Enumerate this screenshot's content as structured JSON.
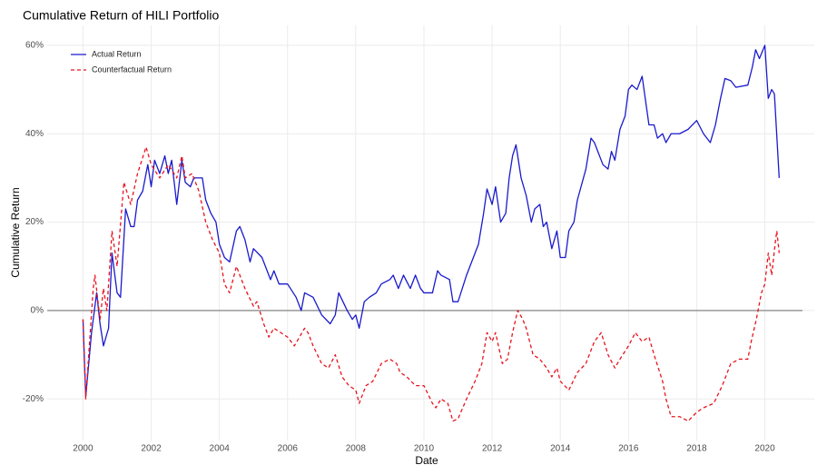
{
  "chart_data": {
    "type": "line",
    "title": "Cumulative Return of HILI Portfolio",
    "xlabel": "Date",
    "ylabel": "Cumulative Return",
    "xlim": [
      1998.95,
      2021.45
    ],
    "xticks": [
      2000,
      2002,
      2004,
      2006,
      2008,
      2010,
      2012,
      2014,
      2016,
      2018,
      2020
    ],
    "ylim": [
      -29.4,
      64.5
    ],
    "yticks": [
      {
        "value": -20,
        "label": "-20%"
      },
      {
        "value": 0,
        "label": "0%"
      },
      {
        "value": 20,
        "label": "20%"
      },
      {
        "value": 40,
        "label": "40%"
      },
      {
        "value": 60,
        "label": "60%"
      }
    ],
    "grid": true,
    "hline": 0,
    "legend": "top-left",
    "series": [
      {
        "name": "Actual Return",
        "color": "#1a1acd",
        "dashed": false,
        "x": [
          2000.0,
          2000.08,
          2000.25,
          2000.4,
          2000.5,
          2000.6,
          2000.75,
          2000.85,
          2001.0,
          2001.1,
          2001.25,
          2001.4,
          2001.5,
          2001.6,
          2001.75,
          2001.9,
          2002.0,
          2002.1,
          2002.25,
          2002.4,
          2002.5,
          2002.6,
          2002.75,
          2002.9,
          2003.0,
          2003.15,
          2003.25,
          2003.5,
          2003.6,
          2003.75,
          2003.9,
          2004.0,
          2004.15,
          2004.3,
          2004.5,
          2004.6,
          2004.75,
          2004.9,
          2005.0,
          2005.25,
          2005.5,
          2005.6,
          2005.75,
          2006.0,
          2006.25,
          2006.4,
          2006.5,
          2006.75,
          2007.0,
          2007.25,
          2007.4,
          2007.5,
          2007.75,
          2007.9,
          2008.0,
          2008.1,
          2008.25,
          2008.4,
          2008.6,
          2008.75,
          2009.0,
          2009.1,
          2009.25,
          2009.4,
          2009.6,
          2009.75,
          2009.9,
          2010.0,
          2010.25,
          2010.4,
          2010.5,
          2010.75,
          2010.85,
          2011.0,
          2011.25,
          2011.5,
          2011.6,
          2011.75,
          2011.85,
          2012.0,
          2012.1,
          2012.25,
          2012.4,
          2012.5,
          2012.6,
          2012.7,
          2012.85,
          2013.0,
          2013.15,
          2013.25,
          2013.4,
          2013.5,
          2013.6,
          2013.75,
          2013.9,
          2014.0,
          2014.15,
          2014.25,
          2014.4,
          2014.5,
          2014.75,
          2014.9,
          2015.0,
          2015.25,
          2015.4,
          2015.5,
          2015.6,
          2015.75,
          2015.9,
          2016.0,
          2016.1,
          2016.25,
          2016.4,
          2016.6,
          2016.75,
          2016.85,
          2017.0,
          2017.1,
          2017.25,
          2017.5,
          2017.75,
          2018.0,
          2018.2,
          2018.4,
          2018.55,
          2018.7,
          2018.83,
          2019.0,
          2019.15,
          2019.5,
          2019.63,
          2019.73,
          2019.84,
          2020.0,
          2020.1,
          2020.2,
          2020.28,
          2020.42
        ],
        "values": [
          -2,
          -19.5,
          -5,
          4,
          -3,
          -8,
          -4,
          13,
          4,
          3,
          23,
          19,
          19,
          25,
          27,
          33,
          28,
          34,
          31,
          35,
          31,
          34,
          24,
          34,
          29,
          28,
          30,
          30,
          25,
          22,
          20,
          15,
          12,
          11,
          18,
          19,
          16,
          11,
          14,
          12,
          7,
          9,
          6,
          6,
          3,
          0,
          4,
          3,
          -1,
          -3,
          -1,
          4,
          0,
          -2,
          -1,
          -4,
          2,
          3,
          4,
          6,
          7,
          8,
          5,
          8,
          5,
          8,
          5,
          4,
          4,
          9,
          8,
          7,
          2,
          2,
          8,
          13,
          15,
          22,
          27.5,
          24,
          28,
          20,
          22,
          30,
          35,
          37.5,
          30,
          26,
          20,
          23,
          24,
          19,
          20,
          14,
          18,
          12,
          12,
          18,
          20,
          25,
          32,
          39,
          38,
          33,
          32,
          36,
          34,
          41,
          44,
          50,
          51,
          50,
          53,
          42,
          42,
          39,
          40,
          38,
          40,
          40,
          41,
          43,
          40,
          38,
          42,
          48,
          52.5,
          52,
          50.5,
          51,
          55,
          59,
          57,
          60,
          48,
          50,
          49,
          30
        ]
      },
      {
        "name": "Counterfactual Return",
        "color": "#e8141e",
        "dashed": true,
        "x": [
          2000.0,
          2000.08,
          2000.3,
          2000.35,
          2000.5,
          2000.6,
          2000.7,
          2000.85,
          2001.0,
          2001.2,
          2001.4,
          2001.6,
          2001.85,
          2002.0,
          2002.25,
          2002.5,
          2002.75,
          2002.9,
          2003.0,
          2003.2,
          2003.4,
          2003.6,
          2003.8,
          2004.0,
          2004.15,
          2004.3,
          2004.5,
          2004.6,
          2004.75,
          2005.0,
          2005.1,
          2005.3,
          2005.45,
          2005.6,
          2005.8,
          2006.0,
          2006.2,
          2006.5,
          2006.6,
          2006.75,
          2007.0,
          2007.2,
          2007.4,
          2007.6,
          2007.8,
          2008.0,
          2008.1,
          2008.3,
          2008.5,
          2008.75,
          2009.0,
          2009.2,
          2009.3,
          2009.5,
          2009.75,
          2010.0,
          2010.25,
          2010.35,
          2010.5,
          2010.7,
          2010.85,
          2011.0,
          2011.25,
          2011.5,
          2011.7,
          2011.85,
          2012.0,
          2012.1,
          2012.3,
          2012.45,
          2012.6,
          2012.75,
          2012.9,
          2013.0,
          2013.2,
          2013.4,
          2013.6,
          2013.75,
          2013.9,
          2014.0,
          2014.25,
          2014.5,
          2014.75,
          2015.0,
          2015.2,
          2015.4,
          2015.6,
          2015.75,
          2016.0,
          2016.2,
          2016.4,
          2016.6,
          2016.75,
          2017.0,
          2017.1,
          2017.25,
          2017.5,
          2017.75,
          2018.0,
          2018.2,
          2018.5,
          2018.75,
          2019.0,
          2019.25,
          2019.5,
          2019.6,
          2019.75,
          2019.9,
          2020.0,
          2020.1,
          2020.2,
          2020.3,
          2020.35,
          2020.42
        ],
        "values": [
          -2,
          -20,
          5,
          8,
          -2,
          5,
          0,
          18,
          10,
          29,
          24,
          31,
          37,
          33,
          30,
          33,
          30,
          35,
          30,
          31,
          27,
          20,
          16,
          13,
          6,
          4,
          10,
          8,
          5,
          1,
          2,
          -3,
          -6,
          -4,
          -5,
          -6,
          -8,
          -4,
          -5,
          -8,
          -12,
          -13,
          -10,
          -15,
          -17,
          -18,
          -21,
          -17,
          -16,
          -12,
          -11,
          -12,
          -14,
          -15,
          -17,
          -17,
          -21,
          -22,
          -20,
          -21,
          -25,
          -24.5,
          -20,
          -16,
          -12,
          -5,
          -7,
          -5,
          -12,
          -11,
          -5,
          0,
          -2,
          -4,
          -10,
          -11,
          -13,
          -15,
          -13,
          -16,
          -18,
          -14,
          -12,
          -7,
          -5,
          -10,
          -13,
          -11,
          -8,
          -5,
          -7,
          -6,
          -10,
          -16,
          -20,
          -24,
          -24,
          -25,
          -23,
          -22,
          -21,
          -17,
          -12,
          -11,
          -11,
          -7,
          -2,
          4,
          6,
          13,
          8,
          15,
          18,
          13
        ]
      }
    ]
  }
}
